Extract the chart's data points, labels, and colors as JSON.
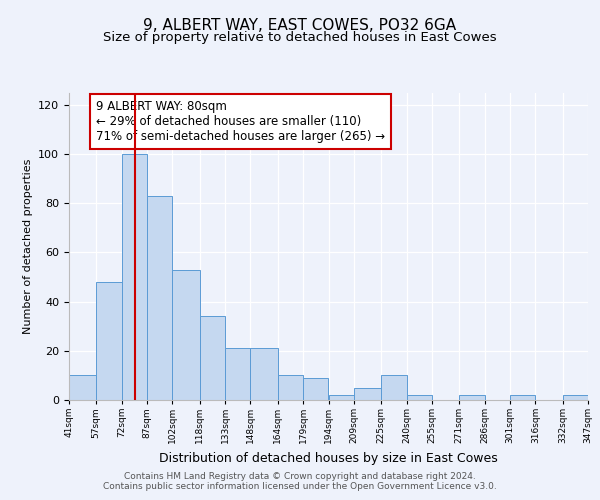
{
  "title": "9, ALBERT WAY, EAST COWES, PO32 6GA",
  "subtitle": "Size of property relative to detached houses in East Cowes",
  "xlabel": "Distribution of detached houses by size in East Cowes",
  "ylabel": "Number of detached properties",
  "bin_labels": [
    "41sqm",
    "57sqm",
    "72sqm",
    "87sqm",
    "102sqm",
    "118sqm",
    "133sqm",
    "148sqm",
    "164sqm",
    "179sqm",
    "194sqm",
    "209sqm",
    "225sqm",
    "240sqm",
    "255sqm",
    "271sqm",
    "286sqm",
    "301sqm",
    "316sqm",
    "332sqm",
    "347sqm"
  ],
  "bar_values": [
    10,
    48,
    100,
    83,
    53,
    34,
    21,
    21,
    10,
    9,
    2,
    5,
    10,
    2,
    0,
    2,
    0,
    2,
    0,
    2
  ],
  "bin_edges": [
    41,
    57,
    72,
    87,
    102,
    118,
    133,
    148,
    164,
    179,
    194,
    209,
    225,
    240,
    255,
    271,
    286,
    301,
    316,
    332,
    347
  ],
  "bar_color": "#c5d8f0",
  "bar_edge_color": "#5b9bd5",
  "property_value": 80,
  "red_line_color": "#cc0000",
  "annotation_text": "9 ALBERT WAY: 80sqm\n← 29% of detached houses are smaller (110)\n71% of semi-detached houses are larger (265) →",
  "annotation_box_color": "#ffffff",
  "annotation_box_edge": "#cc0000",
  "ylim": [
    0,
    125
  ],
  "yticks": [
    0,
    20,
    40,
    60,
    80,
    100,
    120
  ],
  "background_color": "#eef2fb",
  "plot_bg_color": "#eef2fb",
  "footer_text": "Contains HM Land Registry data © Crown copyright and database right 2024.\nContains public sector information licensed under the Open Government Licence v3.0.",
  "title_fontsize": 11,
  "subtitle_fontsize": 9.5,
  "xlabel_fontsize": 9,
  "ylabel_fontsize": 8,
  "annotation_fontsize": 8.5,
  "footer_fontsize": 6.5
}
